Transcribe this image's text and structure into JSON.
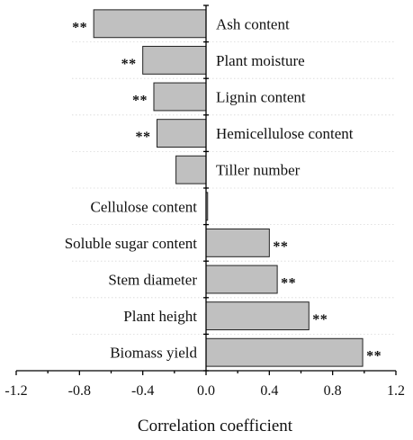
{
  "chart_data": {
    "type": "bar",
    "orientation": "horizontal",
    "title": "",
    "xlabel": "Correlation coefficient",
    "ylabel": "",
    "xlim": [
      -1.2,
      1.2
    ],
    "xticks": [
      "-1.2",
      "-0.8",
      "-0.4",
      "0.0",
      "0.4",
      "0.8",
      "1.2"
    ],
    "categories": [
      "Ash content",
      "Plant moisture",
      "Lignin content",
      "Hemicellulose content",
      "Tiller number",
      "Cellulose content",
      "Soluble sugar content",
      "Stem diameter",
      "Plant height",
      "Biomass yield"
    ],
    "values": [
      -0.71,
      -0.4,
      -0.33,
      -0.31,
      -0.19,
      0.01,
      0.4,
      0.45,
      0.65,
      0.99
    ],
    "significance": [
      "**",
      "**",
      "**",
      "**",
      "",
      "",
      "**",
      "**",
      "**",
      "**"
    ],
    "bar_color": "#c0c0c0",
    "grid": false
  }
}
